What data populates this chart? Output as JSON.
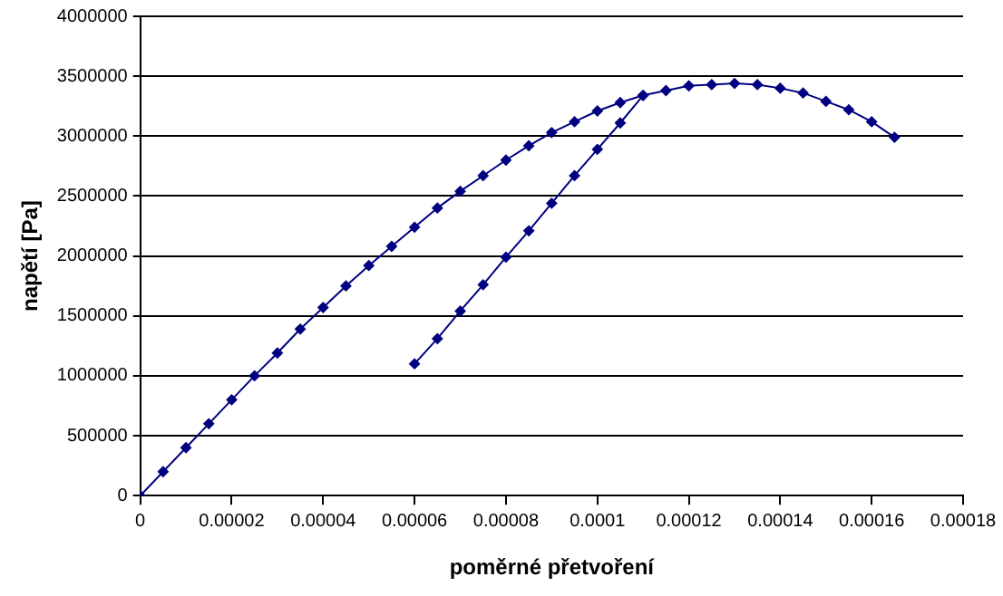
{
  "chart_data": {
    "type": "line",
    "xlabel": "poměrné přetvoření",
    "ylabel": "napětí [Pa]",
    "series": [
      {
        "color": "#000080",
        "x": [
          0,
          5e-06,
          1e-05,
          1.5e-05,
          2e-05,
          2.5e-05,
          3e-05,
          3.5e-05,
          4e-05,
          4.5e-05,
          5e-05,
          5.5e-05,
          6e-05,
          6.5e-05,
          7e-05,
          7.5e-05,
          8e-05,
          8.5e-05,
          9e-05,
          9.5e-05,
          0.0001,
          0.000105,
          0.00011,
          0.000115,
          0.00012,
          0.000125,
          0.00013,
          0.000135,
          0.00014,
          0.000145,
          0.00015,
          0.000155,
          0.00016,
          0.000165
        ],
        "values": [
          0,
          200000,
          400000,
          600000,
          800000,
          1000000,
          1190000,
          1390000,
          1570000,
          1750000,
          1920000,
          2080000,
          2240000,
          2400000,
          2540000,
          2670000,
          2800000,
          2920000,
          3030000,
          3120000,
          3210000,
          3280000,
          3340000,
          3380000,
          3420000,
          3430000,
          3440000,
          3430000,
          3400000,
          3360000,
          3290000,
          3220000,
          3120000,
          2990000
        ]
      },
      {
        "color": "#000080",
        "x": [
          6e-05,
          6.5e-05,
          7e-05,
          7.5e-05,
          8e-05,
          8.5e-05,
          9e-05,
          9.5e-05,
          0.0001,
          0.000105,
          0.00011
        ],
        "values": [
          1100000,
          1310000,
          1540000,
          1760000,
          1990000,
          2210000,
          2440000,
          2670000,
          2890000,
          3110000,
          3340000
        ]
      }
    ],
    "xlim": [
      0,
      0.00018
    ],
    "xticks": [
      0,
      {
        "value": 2e-05,
        "label": "0.00002"
      },
      {
        "value": 4e-05,
        "label": "0.00004"
      },
      {
        "value": 6e-05,
        "label": "0.00006"
      },
      {
        "value": 8e-05,
        "label": "0.00008"
      },
      0.0001,
      0.00012,
      0.00014,
      0.00016,
      0.00018
    ],
    "ylim": [
      0,
      4000000
    ],
    "yticks": [
      0,
      500000,
      1000000,
      1500000,
      2000000,
      2500000,
      3000000,
      3500000,
      4000000
    ],
    "grid": "y",
    "legend": false,
    "marker": "diamond",
    "line_style": "solid"
  }
}
